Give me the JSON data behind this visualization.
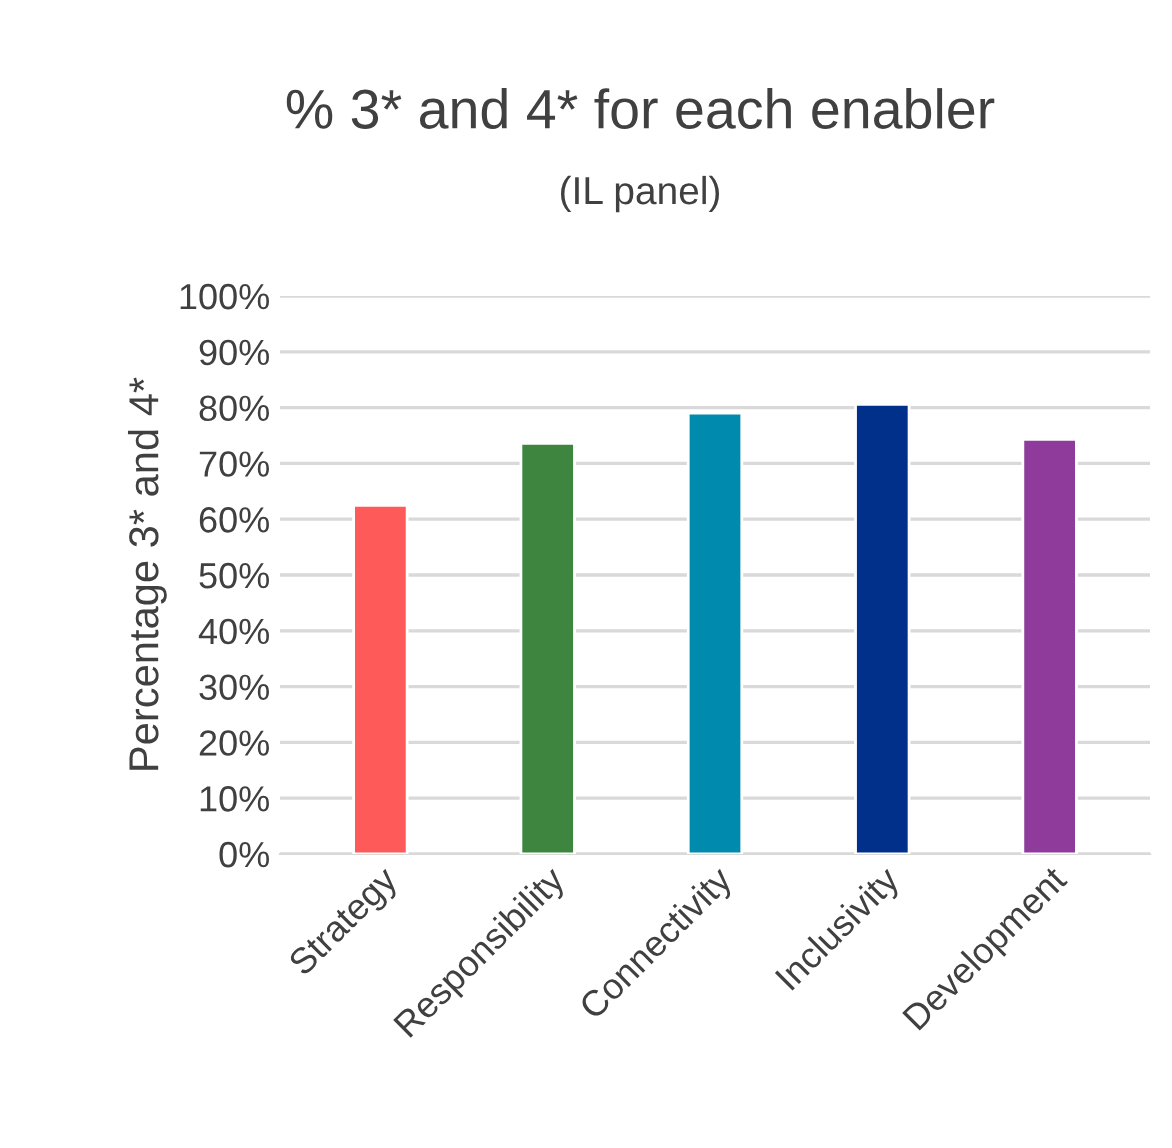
{
  "chart_data": {
    "type": "bar",
    "title": "% 3* and 4* for each enabler",
    "subtitle": "(IL panel)",
    "ylabel": "Percentage 3* and 4*",
    "categories": [
      "Strategy",
      "Responsibility",
      "Connectivity",
      "Inclusivity",
      "Development"
    ],
    "values": [
      62.5,
      73.6,
      79.0,
      80.6,
      74.3
    ],
    "colors": [
      "#ff5a5a",
      "#3e8540",
      "#008aad",
      "#00308a",
      "#8e3b9c"
    ],
    "ylim": [
      0,
      100
    ],
    "yticks": [
      {
        "value": 0,
        "label": "0%"
      },
      {
        "value": 10,
        "label": "10%"
      },
      {
        "value": 20,
        "label": "20%"
      },
      {
        "value": 30,
        "label": "30%"
      },
      {
        "value": 40,
        "label": "40%"
      },
      {
        "value": 50,
        "label": "50%"
      },
      {
        "value": 60,
        "label": "60%"
      },
      {
        "value": 70,
        "label": "70%"
      },
      {
        "value": 80,
        "label": "80%"
      },
      {
        "value": 90,
        "label": "90%"
      },
      {
        "value": 100,
        "label": "100%"
      }
    ],
    "grid": "y"
  }
}
